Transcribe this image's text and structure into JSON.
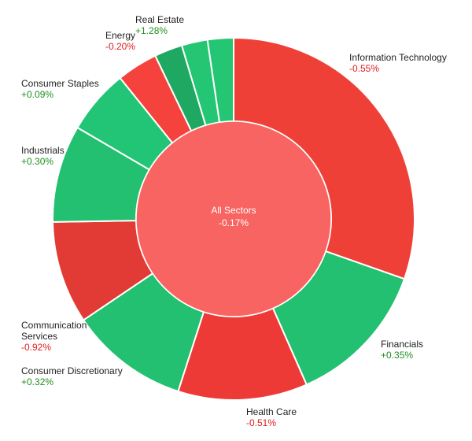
{
  "chart_data": {
    "type": "pie",
    "subtype": "donut-sunburst",
    "center": {
      "label": "All Sectors",
      "change": "-0.17%"
    },
    "segments": [
      {
        "name": "Information Technology",
        "change": "-0.55%",
        "weight": 31.5,
        "color": "#ef4038"
      },
      {
        "name": "Financials",
        "change": "+0.35%",
        "weight": 13.5,
        "color": "#22c070"
      },
      {
        "name": "Health Care",
        "change": "-0.51%",
        "weight": 12.0,
        "color": "#ee3a36"
      },
      {
        "name": "Consumer Discretionary",
        "change": "+0.32%",
        "weight": 11.0,
        "color": "#22c070"
      },
      {
        "name": "Communication Services",
        "change": "-0.92%",
        "weight": 9.5,
        "color": "#e23a34"
      },
      {
        "name": "Industrials",
        "change": "+0.30%",
        "weight": 9.0,
        "color": "#22c070"
      },
      {
        "name": "Consumer Staples",
        "change": "+0.09%",
        "weight": 6.0,
        "color": "#22c575"
      },
      {
        "name": "Energy",
        "change": "-0.20%",
        "weight": 3.8,
        "color": "#f5423c"
      },
      {
        "name": "Real Estate",
        "change": "+1.28%",
        "weight": 2.6,
        "color": "#1fa862"
      },
      {
        "name": "",
        "change": "",
        "weight": 2.4,
        "color": "#24c673"
      },
      {
        "name": "",
        "change": "",
        "weight": 2.4,
        "color": "#24c673"
      }
    ],
    "colors": {
      "positive_text": "#1f8f1f",
      "negative_text": "#e11d1d",
      "center_fill": "#f76461"
    }
  }
}
